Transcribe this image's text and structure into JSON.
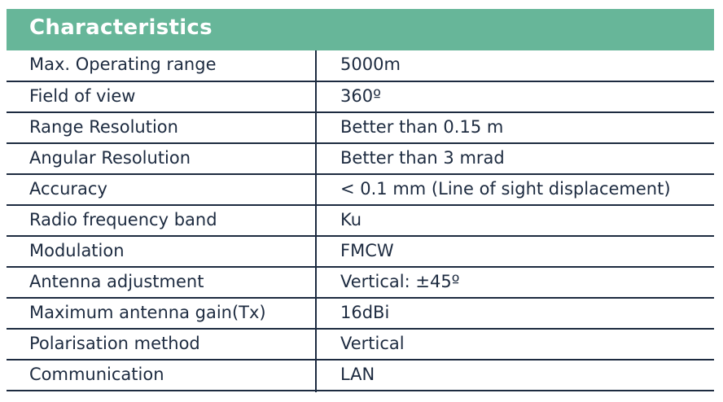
{
  "title": "Characteristics",
  "colors": {
    "header": "#67b699",
    "text": "#1d2b40"
  },
  "rows": [
    {
      "label": "Max. Operating range",
      "value": "5000m"
    },
    {
      "label": "Field of view",
      "value": "360º"
    },
    {
      "label": "Range Resolution",
      "value": "Better than 0.15 m"
    },
    {
      "label": "Angular Resolution",
      "value": "Better than 3 mrad"
    },
    {
      "label": "Accuracy",
      "value": "< 0.1 mm (Line of sight displacement)"
    },
    {
      "label": "Radio frequency band",
      "value": "Ku"
    },
    {
      "label": "Modulation",
      "value": "FMCW"
    },
    {
      "label": "Antenna adjustment",
      "value": "Vertical: ±45º"
    },
    {
      "label": "Maximum antenna gain(Tx)",
      "value": "16dBi"
    },
    {
      "label": "Polarisation method",
      "value": "Vertical"
    },
    {
      "label": "Communication",
      "value": "LAN"
    }
  ]
}
